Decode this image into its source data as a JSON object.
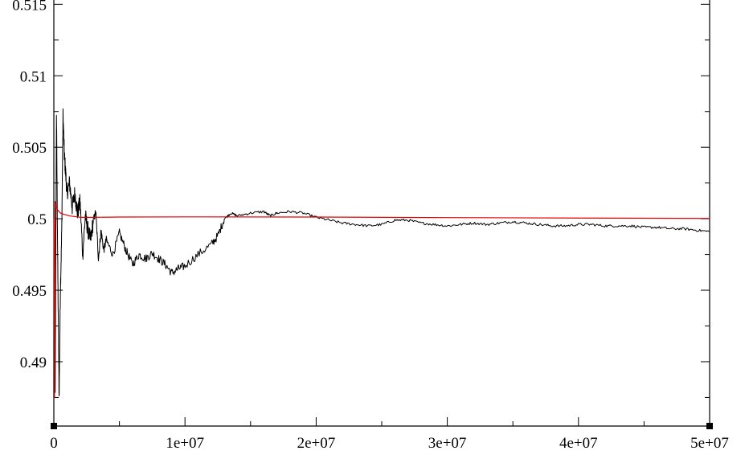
{
  "chart_data": {
    "type": "line",
    "title": "",
    "xlabel": "",
    "ylabel": "",
    "xlim": [
      0,
      50000000
    ],
    "ylim": [
      0.4855,
      0.5153
    ],
    "x_ticks": [
      {
        "value": 0,
        "label": "0"
      },
      {
        "value": 10000000,
        "label": "1e+07"
      },
      {
        "value": 20000000,
        "label": "2e+07"
      },
      {
        "value": 30000000,
        "label": "3e+07"
      },
      {
        "value": 40000000,
        "label": "4e+07"
      },
      {
        "value": 50000000,
        "label": "5e+07"
      }
    ],
    "x_minor_step": 5000000,
    "y_ticks": [
      {
        "value": 0.49,
        "label": "0.49"
      },
      {
        "value": 0.495,
        "label": "0.495"
      },
      {
        "value": 0.5,
        "label": "0.5"
      },
      {
        "value": 0.505,
        "label": "0.505"
      },
      {
        "value": 0.51,
        "label": "0.51"
      },
      {
        "value": 0.515,
        "label": "0.515"
      }
    ],
    "y_minor_step": 0.0025,
    "grid": false,
    "colors": {
      "axes": "#000000"
    },
    "series": [
      {
        "color": "#000000",
        "width": 1.0,
        "x": [
          0,
          100000,
          200000,
          300000,
          400000,
          500000,
          600000,
          700000,
          800000,
          900000,
          1000000,
          1200000,
          1400000,
          1600000,
          1800000,
          2000000,
          2200000,
          2400000,
          2600000,
          2800000,
          3000000,
          3200000,
          3400000,
          3600000,
          3800000,
          4000000,
          4500000,
          5000000,
          5500000,
          6000000,
          6500000,
          7000000,
          7500000,
          8000000,
          8500000,
          9000000,
          9500000,
          10000000,
          11000000,
          12000000,
          12500000,
          13000000,
          13500000,
          14000000,
          15000000,
          16000000,
          16500000,
          17000000,
          18000000,
          19000000,
          20000000,
          21000000,
          22000000,
          23000000,
          24000000,
          25000000,
          26000000,
          27000000,
          28000000,
          29000000,
          30000000,
          31000000,
          32000000,
          33000000,
          34000000,
          35000000,
          36000000,
          37000000,
          38000000,
          39000000,
          40000000,
          41000000,
          42000000,
          43000000,
          44000000,
          45000000,
          46000000,
          47000000,
          48000000,
          49000000,
          50000000
        ],
        "values": [
          0.5,
          0.4875,
          0.5075,
          0.4965,
          0.4875,
          0.495,
          0.499,
          0.5072,
          0.5045,
          0.5032,
          0.5018,
          0.5025,
          0.5008,
          0.5018,
          0.5004,
          0.5012,
          0.4975,
          0.5002,
          0.4992,
          0.4985,
          0.4998,
          0.5005,
          0.4972,
          0.4992,
          0.4978,
          0.4985,
          0.4975,
          0.499,
          0.4978,
          0.4968,
          0.4975,
          0.4972,
          0.4976,
          0.4972,
          0.4968,
          0.4962,
          0.4965,
          0.4967,
          0.4975,
          0.4982,
          0.4988,
          0.5,
          0.5004,
          0.5002,
          0.5004,
          0.5005,
          0.5002,
          0.5004,
          0.5005,
          0.5004,
          0.5001,
          0.4999,
          0.4997,
          0.4996,
          0.4995,
          0.4996,
          0.4999,
          0.4999,
          0.4997,
          0.4996,
          0.4995,
          0.4996,
          0.4997,
          0.4996,
          0.4997,
          0.4998,
          0.4997,
          0.4996,
          0.4995,
          0.4995,
          0.4996,
          0.4996,
          0.4995,
          0.4995,
          0.4995,
          0.4994,
          0.4994,
          0.4993,
          0.4993,
          0.4992,
          0.4991
        ]
      },
      {
        "color": "#e00000",
        "width": 1.2,
        "x": [
          0,
          50000,
          100000,
          200000,
          300000,
          500000,
          800000,
          1200000,
          2000000,
          3000000,
          5000000,
          10000000,
          20000000,
          30000000,
          40000000,
          50000000
        ],
        "values": [
          0.5,
          0.4875,
          0.5012,
          0.5008,
          0.5006,
          0.5004,
          0.5003,
          0.5002,
          0.5001,
          0.5001,
          0.50012,
          0.50013,
          0.50012,
          0.50008,
          0.50005,
          0.50002
        ]
      }
    ]
  }
}
